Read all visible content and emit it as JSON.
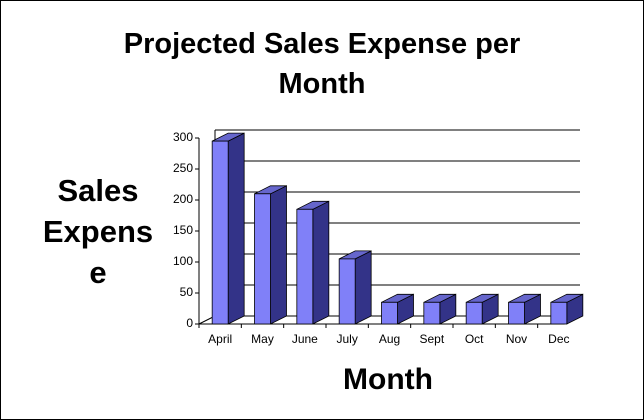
{
  "chart_data": {
    "type": "bar",
    "title": "Projected Sales Expense per Month",
    "x_label": "Month",
    "y_label": "Sales Expense",
    "categories": [
      "April",
      "May",
      "June",
      "July",
      "Aug",
      "Sept",
      "Oct",
      "Nov",
      "Dec"
    ],
    "values": [
      295,
      210,
      185,
      105,
      35,
      35,
      35,
      35,
      35
    ],
    "color": "#8080f8",
    "ylim": [
      0,
      300
    ],
    "yticks": [
      0,
      50,
      100,
      150,
      200,
      250,
      300
    ],
    "grid": true
  }
}
